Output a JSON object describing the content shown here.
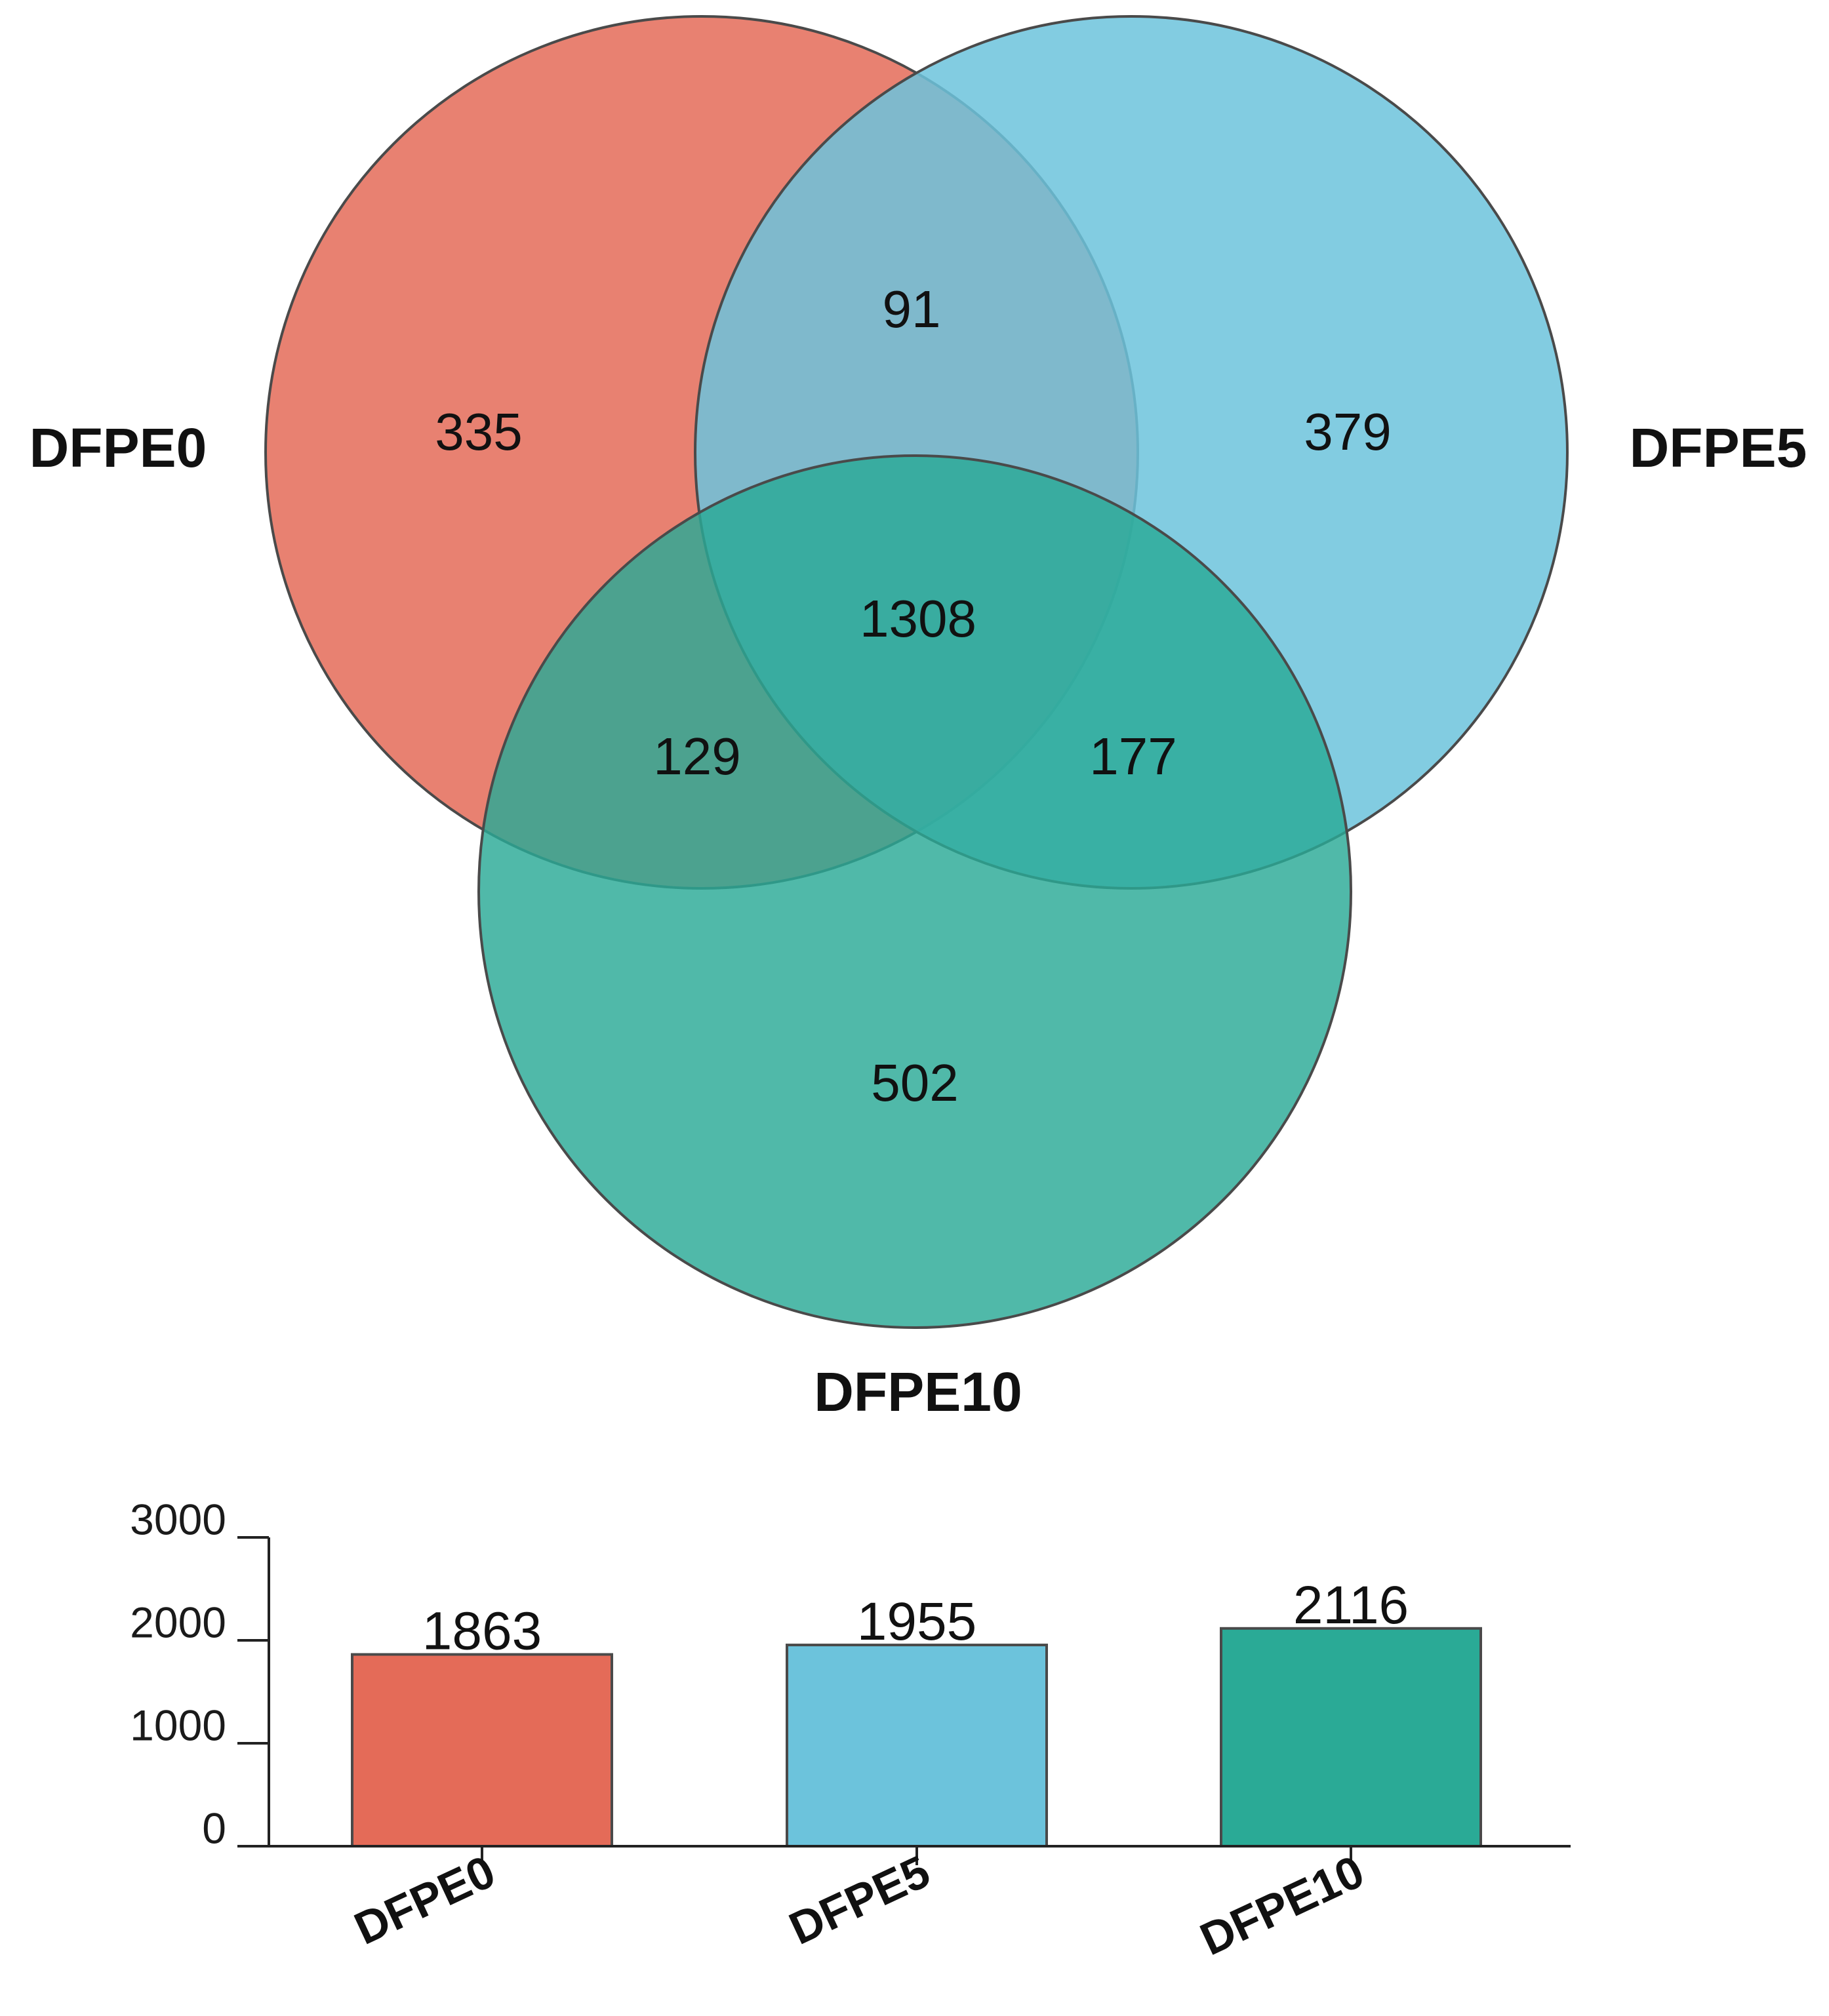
{
  "colors": {
    "DFPE0": "#e46b58",
    "DFPE5": "#6cc3dc",
    "DFPE10": "#2aaa96",
    "outline": "#4a4a4a"
  },
  "chart_data": [
    {
      "type": "venn",
      "sets": [
        "DFPE0",
        "DFPE5",
        "DFPE10"
      ],
      "regions": [
        {
          "id": "only_DFPE0",
          "sets": [
            "DFPE0"
          ],
          "value": "335"
        },
        {
          "id": "only_DFPE5",
          "sets": [
            "DFPE5"
          ],
          "value": "379"
        },
        {
          "id": "only_DFPE10",
          "sets": [
            "DFPE10"
          ],
          "value": "502"
        },
        {
          "id": "DFPE0_DFPE5",
          "sets": [
            "DFPE0",
            "DFPE5"
          ],
          "value": "91"
        },
        {
          "id": "DFPE0_DFPE10",
          "sets": [
            "DFPE0",
            "DFPE10"
          ],
          "value": "129"
        },
        {
          "id": "DFPE5_DFPE10",
          "sets": [
            "DFPE5",
            "DFPE10"
          ],
          "value": "177"
        },
        {
          "id": "all_three",
          "sets": [
            "DFPE0",
            "DFPE5",
            "DFPE10"
          ],
          "value": "1308"
        }
      ]
    },
    {
      "type": "bar",
      "categories": [
        "DFPE0",
        "DFPE5",
        "DFPE10"
      ],
      "values": [
        1863,
        1955,
        2116
      ],
      "value_labels": [
        "1863",
        "1955",
        "2116"
      ],
      "yticks": [
        "0",
        "1000",
        "2000",
        "3000"
      ],
      "ylim": [
        0,
        3000
      ],
      "grid": false,
      "legend": "none"
    }
  ]
}
